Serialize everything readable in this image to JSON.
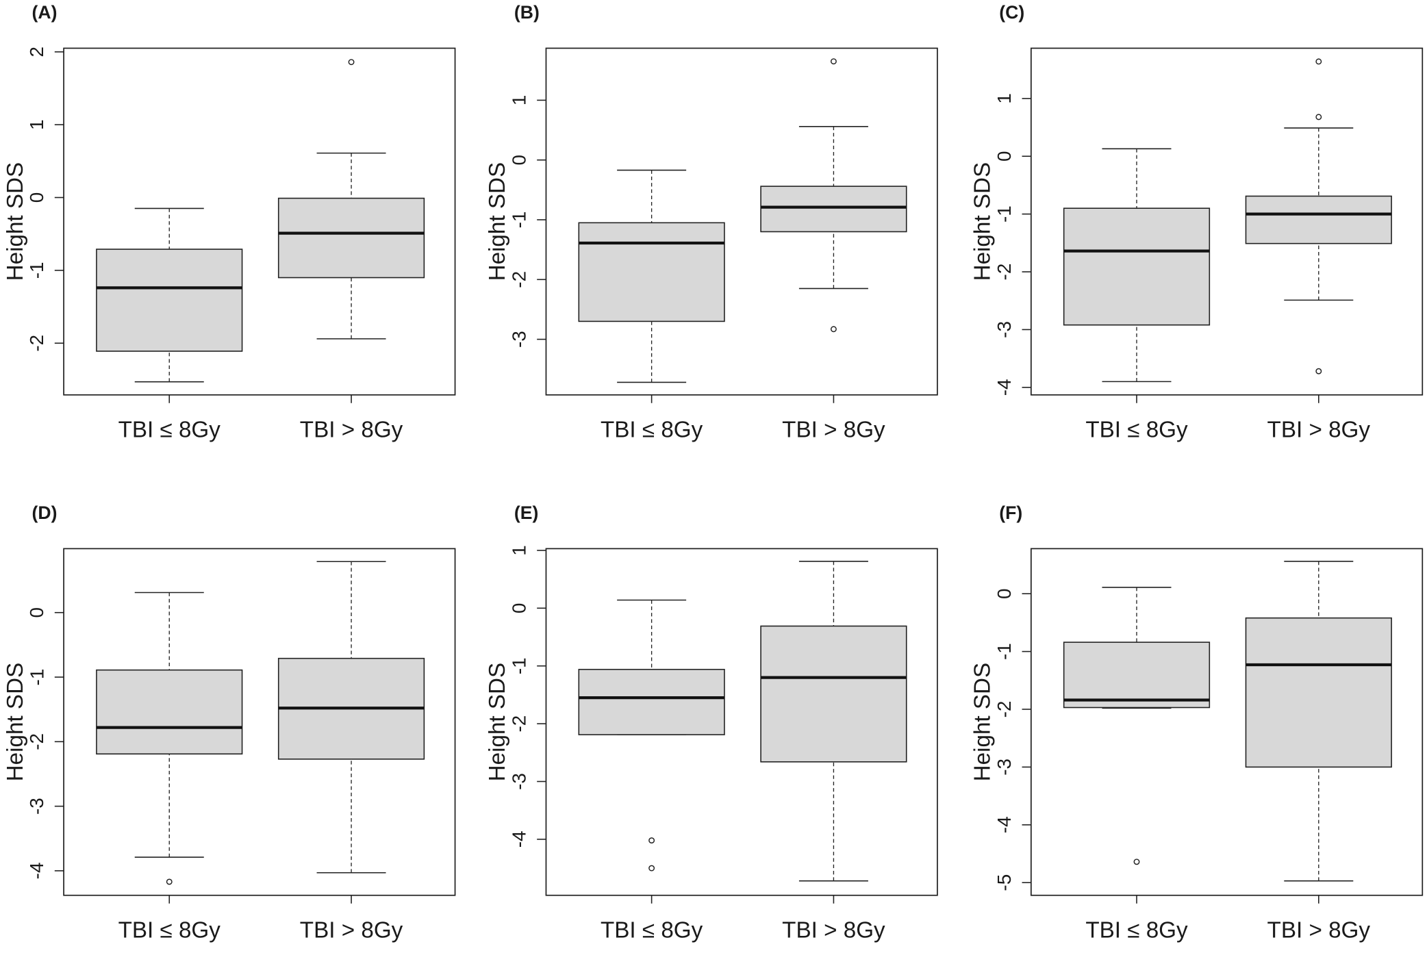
{
  "chart_data": [
    {
      "type": "box",
      "title": "(A)",
      "ylabel": "Height SDS",
      "categories": [
        "TBI ≤ 8Gy",
        "TBI > 8Gy"
      ],
      "ylim": [
        -2.71,
        2.05
      ],
      "yticks": [
        -2,
        -1,
        0,
        1,
        2
      ],
      "boxes": [
        {
          "whislo": -2.53,
          "q1": -2.11,
          "median": -1.24,
          "q3": -0.71,
          "whishi": -0.15,
          "outliers": []
        },
        {
          "whislo": -1.94,
          "q1": -1.1,
          "median": -0.49,
          "q3": -0.01,
          "whishi": 0.61,
          "outliers": [
            1.86
          ]
        }
      ]
    },
    {
      "type": "box",
      "title": "(B)",
      "ylabel": "Height SDS",
      "categories": [
        "TBI ≤ 8Gy",
        "TBI > 8Gy"
      ],
      "ylim": [
        -3.93,
        1.87
      ],
      "yticks": [
        -3,
        -2,
        -1,
        0,
        1
      ],
      "boxes": [
        {
          "whislo": -3.72,
          "q1": -2.7,
          "median": -1.39,
          "q3": -1.05,
          "whishi": -0.17,
          "outliers": []
        },
        {
          "whislo": -2.15,
          "q1": -1.2,
          "median": -0.79,
          "q3": -0.44,
          "whishi": 0.56,
          "outliers": [
            1.65,
            -2.83
          ]
        }
      ]
    },
    {
      "type": "box",
      "title": "(C)",
      "ylabel": "Height SDS",
      "categories": [
        "TBI ≤ 8Gy",
        "TBI > 8Gy"
      ],
      "ylim": [
        -4.13,
        1.87
      ],
      "yticks": [
        -4,
        -3,
        -2,
        -1,
        0,
        1
      ],
      "boxes": [
        {
          "whislo": -3.9,
          "q1": -2.92,
          "median": -1.64,
          "q3": -0.9,
          "whishi": 0.13,
          "outliers": []
        },
        {
          "whislo": -2.49,
          "q1": -1.51,
          "median": -1.0,
          "q3": -0.69,
          "whishi": 0.49,
          "outliers": [
            1.64,
            0.68,
            -3.72
          ]
        }
      ]
    },
    {
      "type": "box",
      "title": "(D)",
      "ylabel": "Height SDS",
      "categories": [
        "TBI ≤ 8Gy",
        "TBI > 8Gy"
      ],
      "ylim": [
        -4.38,
        0.99
      ],
      "yticks": [
        -4,
        -3,
        -2,
        -1,
        0
      ],
      "boxes": [
        {
          "whislo": -3.79,
          "q1": -2.19,
          "median": -1.78,
          "q3": -0.89,
          "whishi": 0.31,
          "outliers": [
            -4.17
          ]
        },
        {
          "whislo": -4.03,
          "q1": -2.27,
          "median": -1.48,
          "q3": -0.71,
          "whishi": 0.79,
          "outliers": []
        }
      ]
    },
    {
      "type": "box",
      "title": "(E)",
      "ylabel": "Height SDS",
      "categories": [
        "TBI ≤ 8Gy",
        "TBI > 8Gy"
      ],
      "ylim": [
        -4.97,
        1.03
      ],
      "yticks": [
        -4,
        -3,
        -2,
        -1,
        0,
        1
      ],
      "boxes": [
        {
          "whislo": -2.19,
          "q1": -2.19,
          "median": -1.55,
          "q3": -1.06,
          "whishi": 0.14,
          "outliers": [
            -4.02,
            -4.5
          ]
        },
        {
          "whislo": -4.72,
          "q1": -2.66,
          "median": -1.2,
          "q3": -0.31,
          "whishi": 0.81,
          "outliers": []
        }
      ]
    },
    {
      "type": "box",
      "title": "(F)",
      "ylabel": "Height SDS",
      "categories": [
        "TBI ≤ 8Gy",
        "TBI > 8Gy"
      ],
      "ylim": [
        -5.22,
        0.78
      ],
      "yticks": [
        -5,
        -4,
        -3,
        -2,
        -1,
        0
      ],
      "boxes": [
        {
          "whislo": -1.98,
          "q1": -1.97,
          "median": -1.84,
          "q3": -0.84,
          "whishi": 0.11,
          "outliers": [
            -4.64
          ]
        },
        {
          "whislo": -4.97,
          "q1": -3.0,
          "median": -1.23,
          "q3": -0.42,
          "whishi": 0.56,
          "outliers": []
        }
      ]
    }
  ]
}
